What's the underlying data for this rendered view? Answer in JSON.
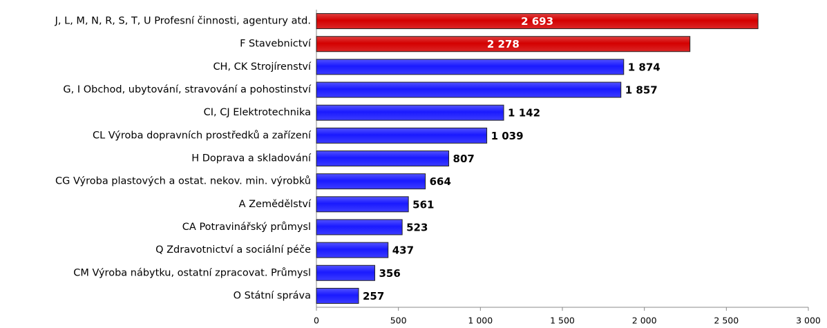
{
  "chart_data": {
    "type": "bar",
    "orientation": "horizontal",
    "categories": [
      "J, L, M, N, R, S, T, U Profesní činnosti, agentury atd.",
      "F Stavebnictví",
      "CH, CK Strojírenství",
      "G, I Obchod, ubytování, stravování a pohostinství",
      "CI, CJ Elektrotechnika",
      "CL Výroba dopravních prostředků a zařízení",
      "H Doprava a skladování",
      "CG Výroba plastových a ostat. nekov. min. výrobků",
      "A Zemědělství",
      "CA Potravinářský průmysl",
      "Q Zdravotnictví a sociální péče",
      "CM Výroba nábytku, ostatní zpracovat. Průmysl",
      "O Státní správa"
    ],
    "values": [
      2693,
      2278,
      1874,
      1857,
      1142,
      1039,
      807,
      664,
      561,
      523,
      437,
      356,
      257
    ],
    "value_labels": [
      "2 693",
      "2 278",
      "1 874",
      "1 857",
      "1 142",
      "1 039",
      "807",
      "664",
      "561",
      "523",
      "437",
      "356",
      "257"
    ],
    "colors": [
      "#d40000",
      "#d40000",
      "#1a1aff",
      "#1a1aff",
      "#1a1aff",
      "#1a1aff",
      "#1a1aff",
      "#1a1aff",
      "#1a1aff",
      "#1a1aff",
      "#1a1aff",
      "#1a1aff",
      "#1a1aff"
    ],
    "xlim": [
      0,
      3000
    ],
    "xticks": [
      0,
      500,
      {
        "value": 1000,
        "label": "1 000"
      },
      {
        "value": 1500,
        "label": "1 500"
      },
      {
        "value": 2000,
        "label": "2 000"
      },
      {
        "value": 2500,
        "label": "2 500"
      },
      {
        "value": 3000,
        "label": "3 000"
      }
    ],
    "grid": false
  }
}
